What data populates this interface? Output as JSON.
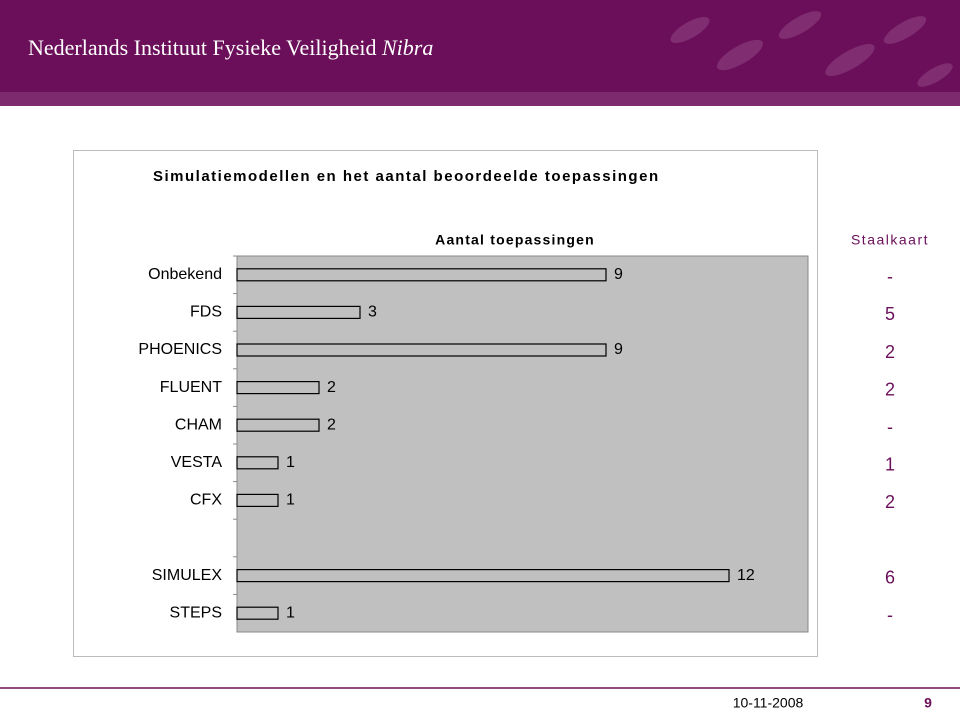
{
  "header": {
    "title": "Nederlands Instituut Fysieke Veiligheid",
    "brand": "Nibra"
  },
  "chart_data": {
    "type": "bar",
    "orientation": "horizontal",
    "title": "Simulatiemodellen en het aantal beoordeelde toepassingen",
    "x_label": "Aantal toepassingen",
    "categories": [
      "Onbekend",
      "FDS",
      "PHOENICS",
      "FLUENT",
      "CHAM",
      "VESTA",
      "CFX",
      null,
      "SIMULEX",
      "STEPS"
    ],
    "values": [
      9,
      3,
      9,
      2,
      2,
      1,
      1,
      null,
      12,
      1
    ],
    "color": "#c0c0c0",
    "xlim": [
      0,
      14
    ],
    "side_column": {
      "title": "Staalkaart",
      "values": [
        "-",
        5,
        2,
        2,
        "-",
        1,
        2,
        null,
        6,
        "-"
      ]
    }
  },
  "footer": {
    "date": "10-11-2008",
    "page": 9
  }
}
